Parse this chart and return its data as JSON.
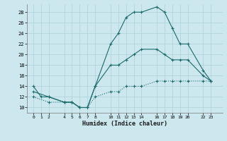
{
  "xlabel": "Humidex (Indice chaleur)",
  "bg_color": "#cce8ee",
  "grid_color": "#b0d4da",
  "line_color": "#1a6b6b",
  "xticks": [
    0,
    1,
    2,
    4,
    5,
    6,
    7,
    8,
    10,
    11,
    12,
    13,
    14,
    16,
    17,
    18,
    19,
    20,
    22,
    23
  ],
  "yticks": [
    10,
    12,
    14,
    16,
    18,
    20,
    22,
    24,
    26,
    28
  ],
  "ylim": [
    9.0,
    29.5
  ],
  "xlim": [
    -0.8,
    24.5
  ],
  "line1_x": [
    0,
    1,
    2,
    4,
    5,
    6,
    7,
    8,
    10,
    11,
    12,
    13,
    14,
    16,
    17,
    18,
    19,
    20,
    22,
    23
  ],
  "line1_y": [
    14,
    12,
    12,
    11,
    11,
    10,
    10,
    14,
    22,
    24,
    27,
    28,
    28,
    29,
    28,
    25,
    22,
    22,
    17,
    15
  ],
  "line2_x": [
    0,
    2,
    4,
    5,
    6,
    7,
    8,
    10,
    11,
    12,
    13,
    14,
    16,
    17,
    18,
    19,
    20,
    22,
    23
  ],
  "line2_y": [
    13,
    12,
    11,
    11,
    10,
    10,
    14,
    18,
    18,
    19,
    20,
    21,
    21,
    20,
    19,
    19,
    19,
    16,
    15
  ],
  "line3_x": [
    0,
    2,
    4,
    5,
    6,
    7,
    8,
    10,
    11,
    12,
    13,
    14,
    16,
    17,
    18,
    19,
    20,
    22,
    23
  ],
  "line3_y": [
    12,
    11,
    11,
    11,
    10,
    10,
    12,
    13,
    13,
    14,
    14,
    14,
    15,
    15,
    15,
    15,
    15,
    15,
    15
  ]
}
